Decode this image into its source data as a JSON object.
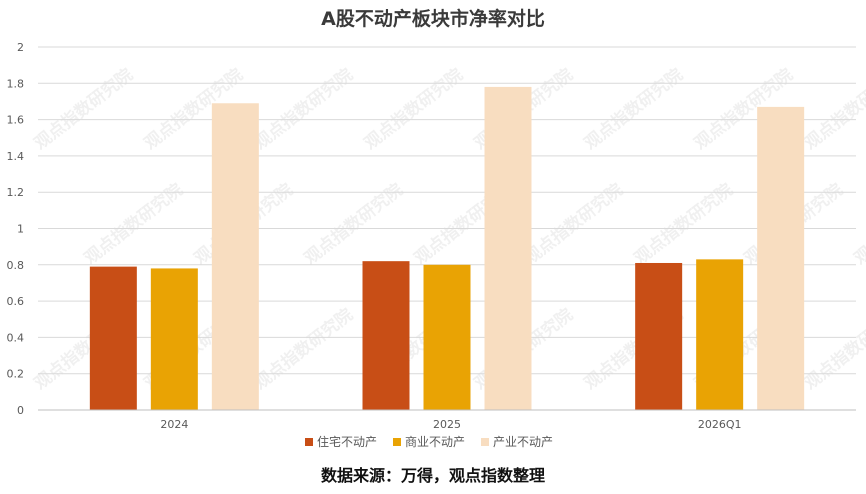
{
  "chart_data": {
    "type": "bar",
    "title": "A股不动产板块市净率对比",
    "categories": [
      "2024",
      "2025",
      "2026Q1"
    ],
    "series": [
      {
        "name": "住宅不动产",
        "color": "#C84E16",
        "values": [
          0.79,
          0.82,
          0.81
        ]
      },
      {
        "name": "商业不动产",
        "color": "#E9A304",
        "values": [
          0.78,
          0.8,
          0.83
        ]
      },
      {
        "name": "产业不动产",
        "color": "#F8DDC0",
        "values": [
          1.69,
          1.78,
          1.67
        ]
      }
    ],
    "yticks": [
      "0",
      "0.2",
      "0.4",
      "0.6",
      "0.8",
      "1",
      "1.2",
      "1.4",
      "1.6",
      "1.8",
      "2"
    ],
    "ylim": [
      0,
      2
    ],
    "xlabel": "",
    "ylabel": "",
    "grid": true,
    "legend_position": "bottom"
  },
  "watermark": "观点指数研究院",
  "source": "数据来源：万得，观点指数整理"
}
